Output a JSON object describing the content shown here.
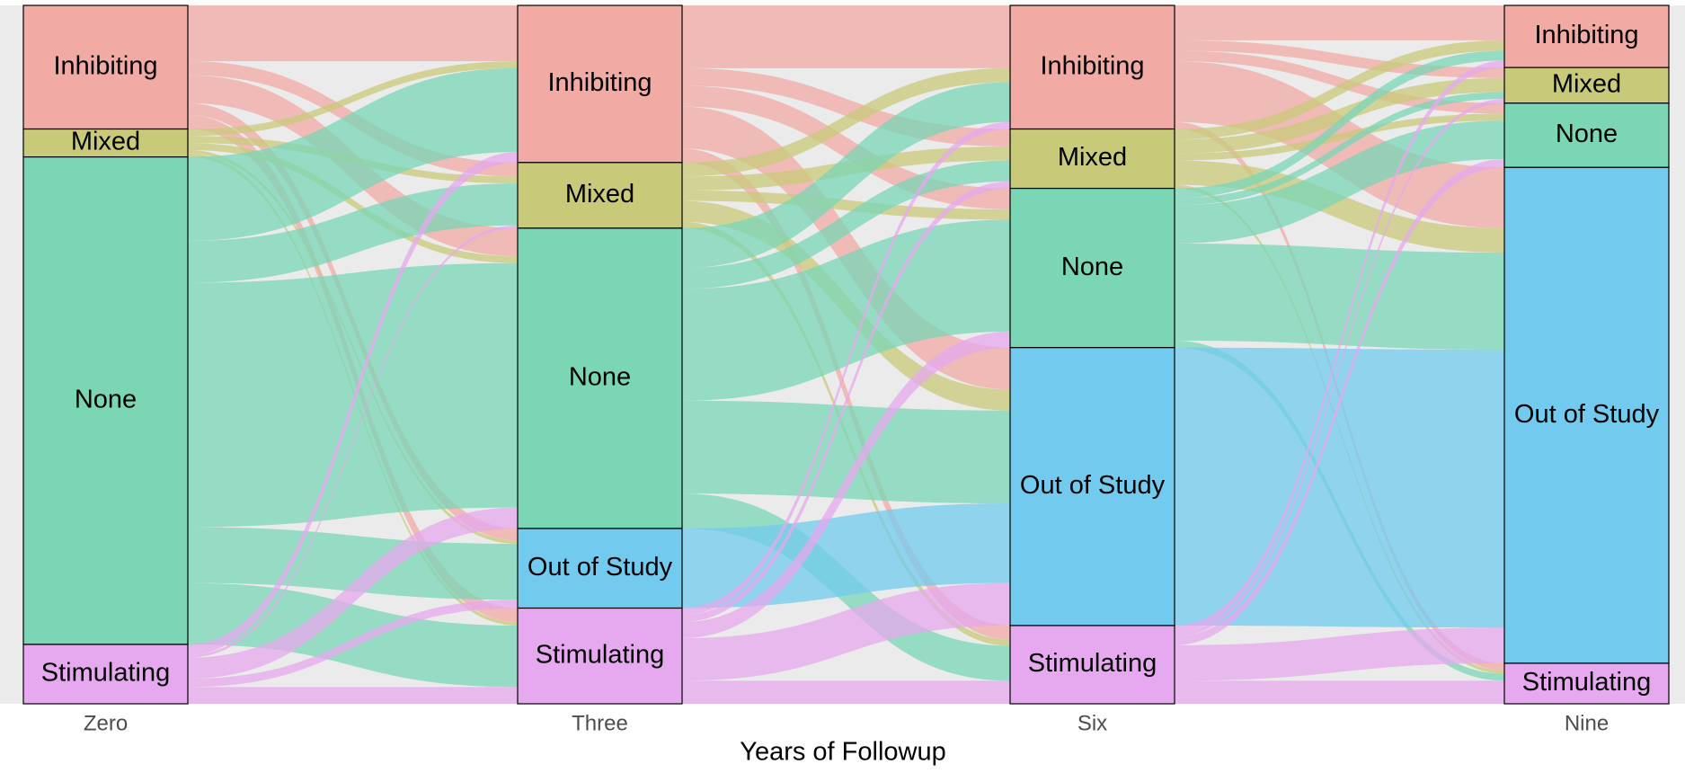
{
  "chart_data": {
    "type": "alluvial",
    "x_label": "Years of Followup",
    "colors": {
      "Inhibiting": "#f2aaa4",
      "Mixed": "#c9c97a",
      "None": "#7ad6b5",
      "Out of Study": "#72cbee",
      "Stimulating": "#e6a8ee"
    },
    "axes": [
      {
        "name": "Zero",
        "strata": [
          "Inhibiting",
          "Mixed",
          "None",
          "Stimulating"
        ]
      },
      {
        "name": "Three",
        "strata": [
          "Inhibiting",
          "Mixed",
          "None",
          "Out of Study",
          "Stimulating"
        ]
      },
      {
        "name": "Six",
        "strata": [
          "Inhibiting",
          "Mixed",
          "None",
          "Out of Study",
          "Stimulating"
        ]
      },
      {
        "name": "Nine",
        "strata": [
          "Inhibiting",
          "Mixed",
          "None",
          "Out of Study",
          "Stimulating"
        ]
      }
    ],
    "flows": [
      [
        [
          8,
          2,
          4,
          1.7,
          2
        ],
        [
          1,
          1,
          1,
          0.5,
          0.5
        ],
        [
          12,
          6,
          35,
          8,
          8.8
        ],
        [
          1.5,
          0.4,
          3,
          1.2,
          2.4
        ]
      ],
      [
        [
          9,
          2.5,
          3,
          6,
          2
        ],
        [
          2,
          2,
          1.5,
          3,
          0.9
        ],
        [
          5.7,
          3,
          16,
          13.3,
          5
        ],
        [
          0,
          0,
          0,
          11.4,
          0
        ],
        [
          1,
          1,
          2.3,
          6.1,
          3.3
        ]
      ],
      [
        [
          5,
          1.5,
          1.5,
          8.7,
          1
        ],
        [
          1.5,
          2,
          1,
          3.5,
          0.5
        ],
        [
          1.4,
          1,
          5.5,
          13.9,
          1
        ],
        [
          0,
          0,
          0,
          39.8,
          0
        ],
        [
          1,
          0.6,
          1.2,
          5.1,
          3.3
        ]
      ]
    ]
  }
}
